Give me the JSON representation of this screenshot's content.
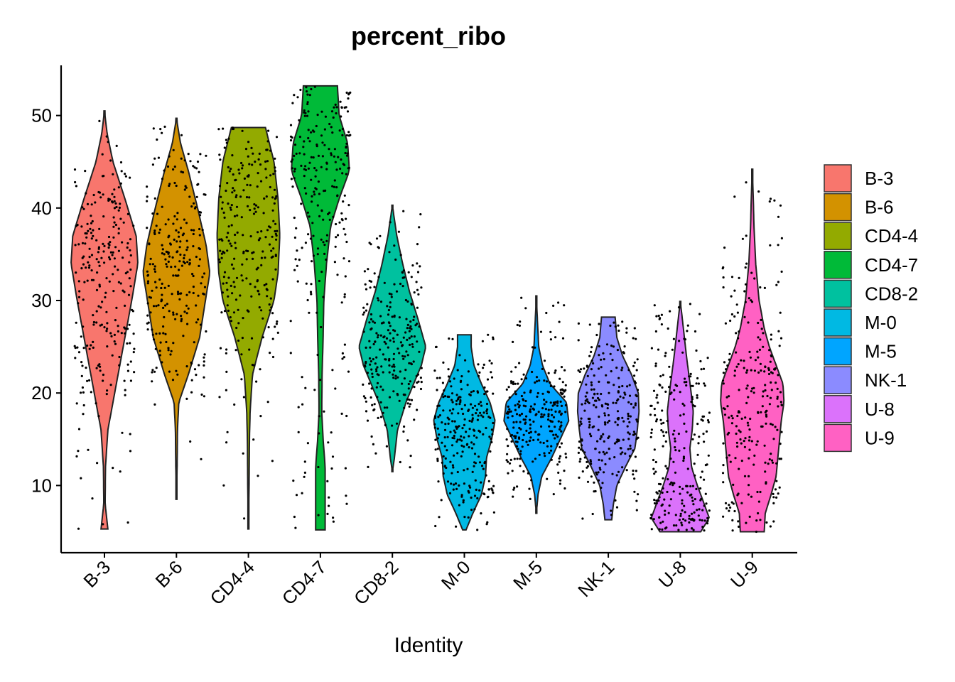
{
  "chart_data": {
    "type": "violin",
    "title": "percent_ribo",
    "xlabel": "Identity",
    "ylabel": "",
    "ylim": [
      2.5,
      55.5
    ],
    "yticks": [
      10,
      20,
      30,
      40,
      50
    ],
    "categories": [
      "B-3",
      "B-6",
      "CD4-4",
      "CD4-7",
      "CD8-2",
      "M-0",
      "M-5",
      "NK-1",
      "U-8",
      "U-9"
    ],
    "colors": [
      "#F8766D",
      "#D39200",
      "#93AA00",
      "#00BA38",
      "#00C19F",
      "#00B9E3",
      "#00A5FF",
      "#8B8BFF",
      "#DB72FB",
      "#FF61C3"
    ],
    "legend": {
      "position": "right",
      "entries": [
        "B-3",
        "B-6",
        "CD4-4",
        "CD4-7",
        "CD8-2",
        "M-0",
        "M-5",
        "NK-1",
        "U-8",
        "U-9"
      ]
    },
    "series": [
      {
        "name": "B-3",
        "min": 5.3,
        "max": 50.5,
        "profile": [
          [
            5.3,
            0.1
          ],
          [
            8,
            0.02
          ],
          [
            12,
            0.03
          ],
          [
            16,
            0.1
          ],
          [
            20,
            0.3
          ],
          [
            25,
            0.55
          ],
          [
            30,
            0.8
          ],
          [
            34,
            0.98
          ],
          [
            37,
            0.93
          ],
          [
            41,
            0.6
          ],
          [
            45,
            0.25
          ],
          [
            48,
            0.08
          ],
          [
            50.5,
            0
          ]
        ]
      },
      {
        "name": "B-6",
        "min": 8.5,
        "max": 49.7,
        "profile": [
          [
            8.5,
            0
          ],
          [
            12,
            0.02
          ],
          [
            16,
            0.03
          ],
          [
            19,
            0.07
          ],
          [
            22,
            0.35
          ],
          [
            26,
            0.68
          ],
          [
            30,
            0.85
          ],
          [
            33,
            0.98
          ],
          [
            36,
            0.87
          ],
          [
            40,
            0.62
          ],
          [
            44,
            0.35
          ],
          [
            47,
            0.12
          ],
          [
            49.7,
            0
          ]
        ]
      },
      {
        "name": "CD4-4",
        "min": 5.3,
        "max": 48.7,
        "profile": [
          [
            5.3,
            0
          ],
          [
            10,
            0.02
          ],
          [
            15,
            0.03
          ],
          [
            18,
            0.05
          ],
          [
            22,
            0.12
          ],
          [
            26,
            0.4
          ],
          [
            30,
            0.75
          ],
          [
            33,
            0.87
          ],
          [
            37,
            0.92
          ],
          [
            41,
            0.87
          ],
          [
            45,
            0.75
          ],
          [
            48.7,
            0.5
          ]
        ]
      },
      {
        "name": "CD4-7",
        "min": 5.2,
        "max": 53.2,
        "profile": [
          [
            5.2,
            0.14
          ],
          [
            8,
            0.14
          ],
          [
            12,
            0.14
          ],
          [
            15,
            0.08
          ],
          [
            18,
            0.04
          ],
          [
            22,
            0.05
          ],
          [
            26,
            0.08
          ],
          [
            30,
            0.1
          ],
          [
            34,
            0.18
          ],
          [
            38,
            0.3
          ],
          [
            41,
            0.55
          ],
          [
            44,
            0.85
          ],
          [
            47,
            0.8
          ],
          [
            50,
            0.55
          ],
          [
            53.2,
            0.5
          ]
        ]
      },
      {
        "name": "CD8-2",
        "min": 11.5,
        "max": 40.3,
        "profile": [
          [
            11.5,
            0
          ],
          [
            13,
            0.06
          ],
          [
            16,
            0.15
          ],
          [
            19,
            0.4
          ],
          [
            23,
            0.85
          ],
          [
            25,
            0.98
          ],
          [
            28,
            0.75
          ],
          [
            31,
            0.5
          ],
          [
            34,
            0.3
          ],
          [
            37,
            0.13
          ],
          [
            40.3,
            0
          ]
        ]
      },
      {
        "name": "M-0",
        "min": 5.2,
        "max": 26.3,
        "profile": [
          [
            5.2,
            0.05
          ],
          [
            7,
            0.25
          ],
          [
            9,
            0.5
          ],
          [
            11,
            0.62
          ],
          [
            13,
            0.65
          ],
          [
            15,
            0.8
          ],
          [
            17,
            0.9
          ],
          [
            19,
            0.75
          ],
          [
            21,
            0.5
          ],
          [
            23,
            0.28
          ],
          [
            25,
            0.2
          ],
          [
            26.3,
            0.2
          ]
        ]
      },
      {
        "name": "M-5",
        "min": 7.0,
        "max": 30.5,
        "profile": [
          [
            7,
            0
          ],
          [
            9,
            0.05
          ],
          [
            11,
            0.16
          ],
          [
            13,
            0.45
          ],
          [
            15,
            0.7
          ],
          [
            17,
            0.95
          ],
          [
            19,
            0.88
          ],
          [
            21,
            0.4
          ],
          [
            23,
            0.18
          ],
          [
            25,
            0.07
          ],
          [
            28,
            0.03
          ],
          [
            30.5,
            0
          ]
        ]
      },
      {
        "name": "NK-1",
        "min": 6.3,
        "max": 28.2,
        "profile": [
          [
            6.3,
            0.1
          ],
          [
            8,
            0.15
          ],
          [
            10,
            0.25
          ],
          [
            12,
            0.5
          ],
          [
            14,
            0.78
          ],
          [
            16,
            0.85
          ],
          [
            18,
            0.9
          ],
          [
            20,
            0.88
          ],
          [
            22,
            0.68
          ],
          [
            24,
            0.42
          ],
          [
            26,
            0.25
          ],
          [
            28.2,
            0.2
          ]
        ]
      },
      {
        "name": "U-8",
        "min": 5.0,
        "max": 29.9,
        "profile": [
          [
            5,
            0.6
          ],
          [
            6.5,
            0.85
          ],
          [
            8,
            0.7
          ],
          [
            10,
            0.5
          ],
          [
            12,
            0.33
          ],
          [
            14,
            0.28
          ],
          [
            16,
            0.35
          ],
          [
            18,
            0.38
          ],
          [
            20,
            0.32
          ],
          [
            22,
            0.25
          ],
          [
            24,
            0.18
          ],
          [
            26,
            0.12
          ],
          [
            28,
            0.06
          ],
          [
            29.9,
            0
          ]
        ]
      },
      {
        "name": "U-9",
        "min": 5.0,
        "max": 44.2,
        "profile": [
          [
            5,
            0.35
          ],
          [
            7,
            0.38
          ],
          [
            9,
            0.55
          ],
          [
            11,
            0.7
          ],
          [
            13,
            0.75
          ],
          [
            15,
            0.8
          ],
          [
            17,
            0.85
          ],
          [
            19,
            0.93
          ],
          [
            21,
            0.9
          ],
          [
            23,
            0.7
          ],
          [
            25,
            0.5
          ],
          [
            27,
            0.35
          ],
          [
            30,
            0.2
          ],
          [
            34,
            0.1
          ],
          [
            38,
            0.05
          ],
          [
            41,
            0.03
          ],
          [
            44.2,
            0
          ]
        ]
      }
    ]
  }
}
